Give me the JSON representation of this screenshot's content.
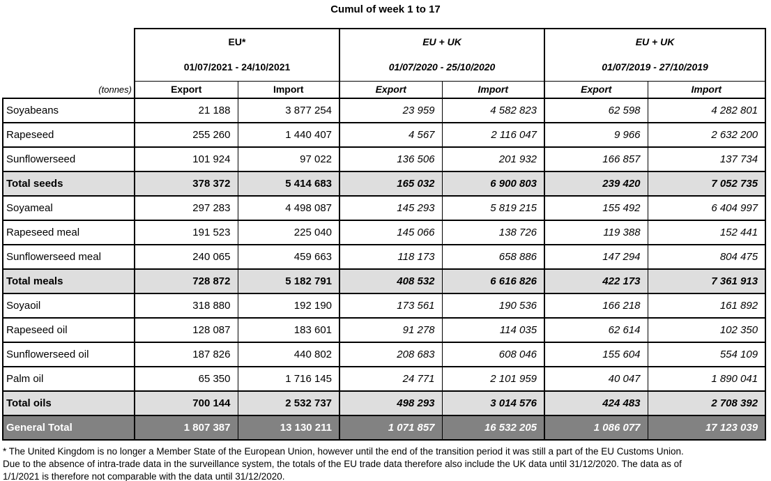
{
  "title": "Cumul of week 1 to 17",
  "units_label": "(tonnes)",
  "column_groups": [
    {
      "name": "EU*",
      "period": "01/07/2021 - 24/10/2021"
    },
    {
      "name": "EU + UK",
      "period": "01/07/2020 - 25/10/2020"
    },
    {
      "name": "EU + UK",
      "period": "01/07/2019 - 27/10/2019"
    }
  ],
  "sub_headers": [
    "Export",
    "Import"
  ],
  "rows": [
    {
      "label": "Soyabeans",
      "style": "data",
      "values": [
        "21 188",
        "3 877 254",
        "23 959",
        "4 582 823",
        "62 598",
        "4 282 801"
      ]
    },
    {
      "label": "Rapeseed",
      "style": "data",
      "values": [
        "255 260",
        "1 440 407",
        "4 567",
        "2 116 047",
        "9 966",
        "2 632 200"
      ]
    },
    {
      "label": "Sunflowerseed",
      "style": "data",
      "values": [
        "101 924",
        "97 022",
        "136 506",
        "201 932",
        "166 857",
        "137 734"
      ]
    },
    {
      "label": "Total seeds",
      "style": "subtotal",
      "values": [
        "378 372",
        "5 414 683",
        "165 032",
        "6 900 803",
        "239 420",
        "7 052 735"
      ]
    },
    {
      "label": "Soyameal",
      "style": "data",
      "values": [
        "297 283",
        "4 498 087",
        "145 293",
        "5 819 215",
        "155 492",
        "6 404 997"
      ]
    },
    {
      "label": "Rapeseed meal",
      "style": "data",
      "values": [
        "191 523",
        "225 040",
        "145 066",
        "138 726",
        "119 388",
        "152 441"
      ]
    },
    {
      "label": "Sunflowerseed meal",
      "style": "data",
      "values": [
        "240 065",
        "459 663",
        "118 173",
        "658 886",
        "147 294",
        "804 475"
      ]
    },
    {
      "label": "Total meals",
      "style": "subtotal",
      "values": [
        "728 872",
        "5 182 791",
        "408 532",
        "6 616 826",
        "422 173",
        "7 361 913"
      ]
    },
    {
      "label": "Soyaoil",
      "style": "data",
      "values": [
        "318 880",
        "192 190",
        "173 561",
        "190 536",
        "166 218",
        "161 892"
      ]
    },
    {
      "label": "Rapeseed oil",
      "style": "data",
      "values": [
        "128 087",
        "183 601",
        "91 278",
        "114 035",
        "62 614",
        "102 350"
      ]
    },
    {
      "label": "Sunflowerseed oil",
      "style": "data",
      "values": [
        "187 826",
        "440 802",
        "208 683",
        "608 046",
        "155 604",
        "554 109"
      ]
    },
    {
      "label": "Palm oil",
      "style": "data",
      "values": [
        "65 350",
        "1 716 145",
        "24 771",
        "2 101 959",
        "40 047",
        "1 890 041"
      ]
    },
    {
      "label": "Total oils",
      "style": "subtotal",
      "values": [
        "700 144",
        "2 532 737",
        "498 293",
        "3 014 576",
        "424 483",
        "2 708 392"
      ]
    },
    {
      "label": "General Total",
      "style": "grand",
      "values": [
        "1 807 387",
        "13 130 211",
        "1 071 857",
        "16 532 205",
        "1 086 077",
        "17 123 039"
      ]
    }
  ],
  "footnote": {
    "lines": [
      "* The United Kingdom is no longer a Member State of the European Union, however until the end of the transition period it was still a part of the EU Customs Union.",
      "Due to the absence of intra-trade data in the surveillance system, the totals of the EU trade data  therefore also include the UK data until 31/12/2020. The data as of",
      "1/1/2021 is therefore not comparable with the data until 31/12/2020."
    ]
  },
  "colors": {
    "subtotal_bg": "#dedede",
    "grand_total_bg": "#828282",
    "grand_total_text": "#ffffff",
    "border": "#000000"
  }
}
